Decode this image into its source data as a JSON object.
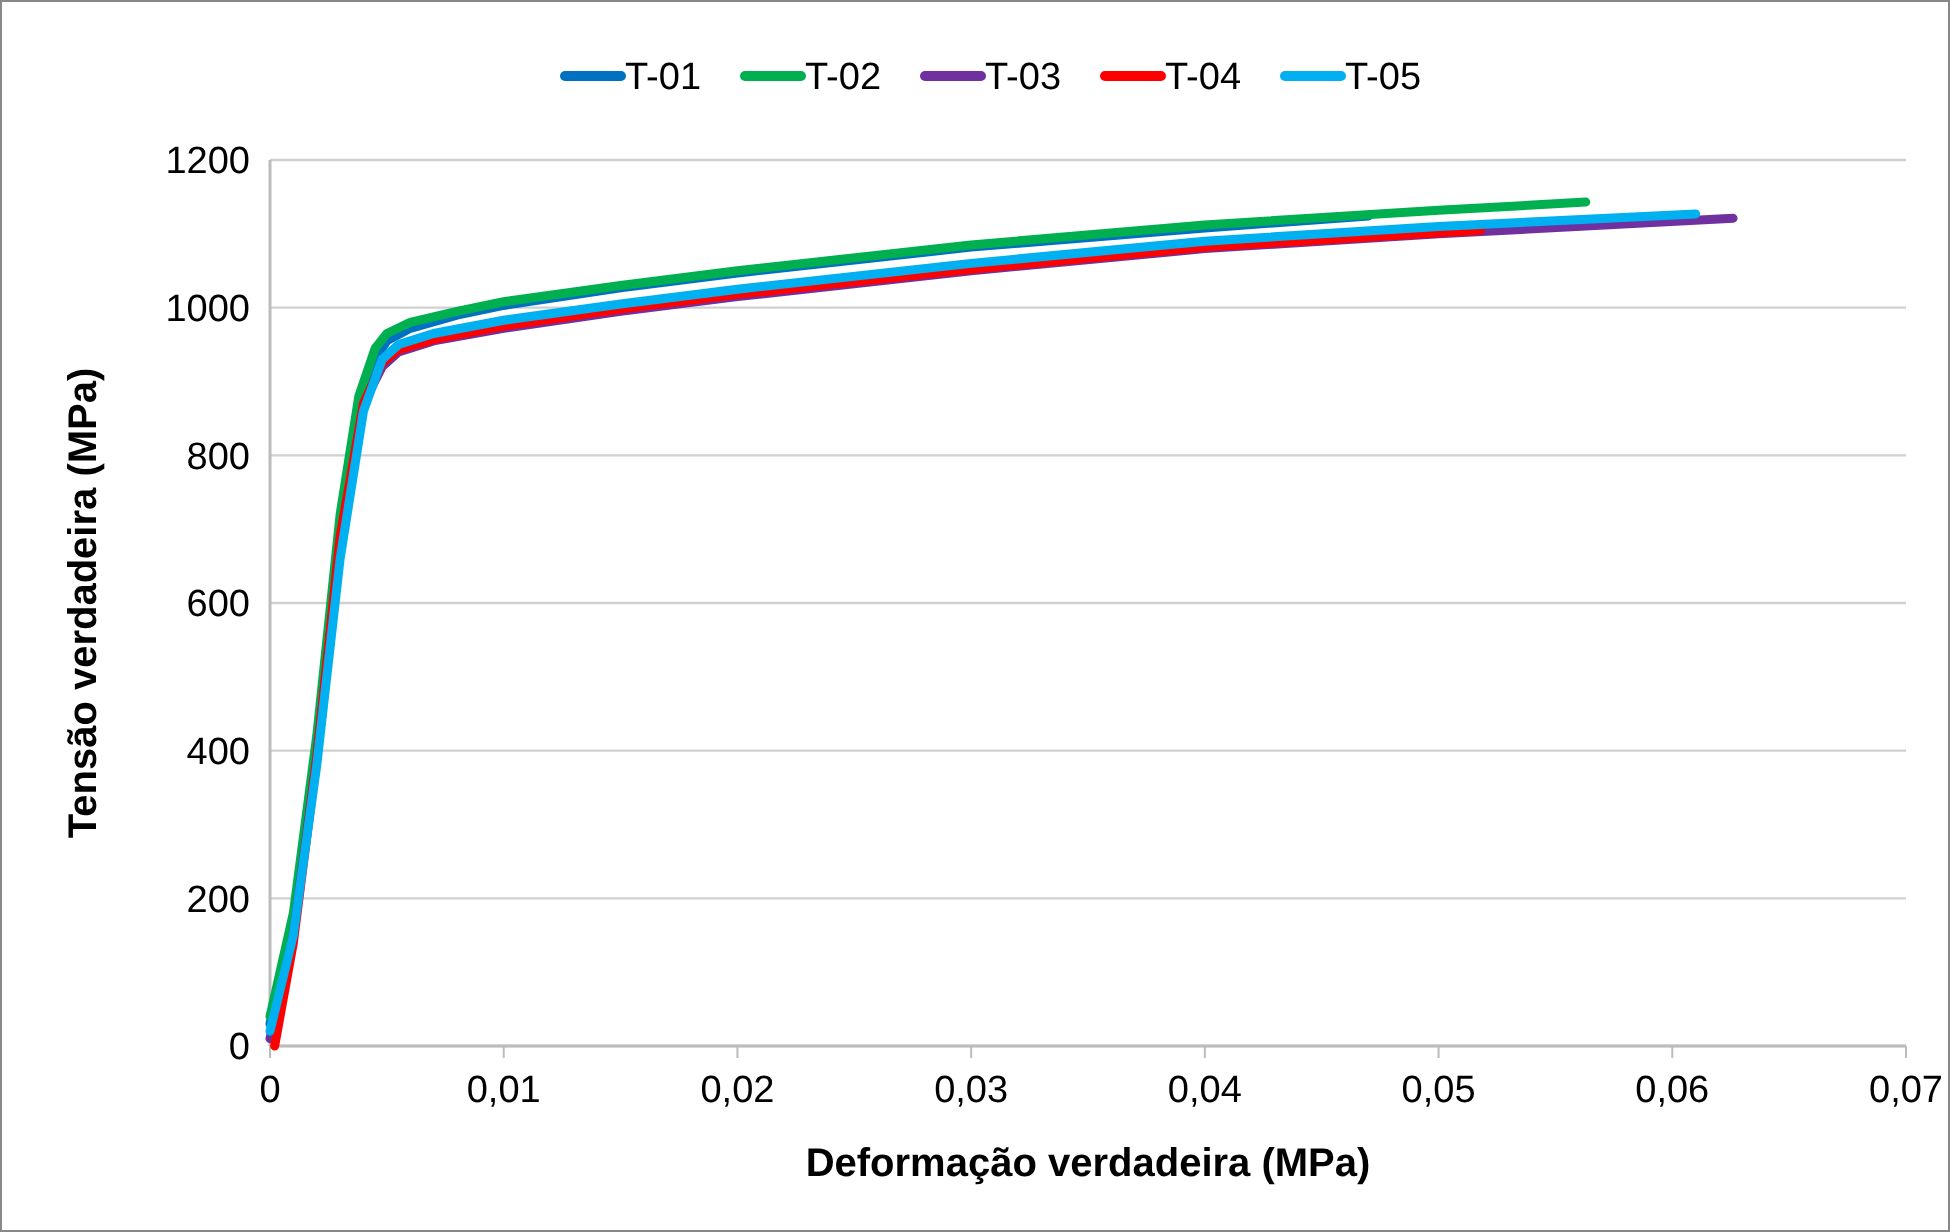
{
  "chart_data": {
    "type": "line",
    "xlabel": "Deformação verdadeira (MPa)",
    "ylabel": "Tensão verdadeira (MPa)",
    "legend": "top",
    "grid": "y",
    "marker": "none",
    "line_style": "solid",
    "xlim": [
      0,
      0.07
    ],
    "xticks": [
      0,
      {
        "value": 0.01,
        "label": "0,01"
      },
      {
        "value": 0.02,
        "label": "0,02"
      },
      {
        "value": 0.03,
        "label": "0,03"
      },
      {
        "value": 0.04,
        "label": "0,04"
      },
      {
        "value": 0.05,
        "label": "0,05"
      },
      {
        "value": 0.06,
        "label": "0,06"
      },
      {
        "value": 0.07,
        "label": "0,07"
      }
    ],
    "ylim": [
      0,
      1200
    ],
    "yticks": [
      0,
      200,
      400,
      600,
      800,
      1000,
      1200
    ],
    "series": [
      {
        "name": "T-01",
        "color": "#0070c0",
        "x": [
          0,
          0.001,
          0.002,
          0.003,
          0.0038,
          0.0045,
          0.005,
          0.006,
          0.008,
          0.01,
          0.015,
          0.02,
          0.03,
          0.04,
          0.047
        ],
        "values": [
          30,
          170,
          410,
          700,
          860,
          930,
          955,
          972,
          990,
          1003,
          1027,
          1047,
          1082,
          1108,
          1124
        ]
      },
      {
        "name": "T-02",
        "color": "#00b050",
        "x": [
          0,
          0.001,
          0.002,
          0.003,
          0.0038,
          0.0045,
          0.005,
          0.006,
          0.008,
          0.01,
          0.015,
          0.02,
          0.03,
          0.04,
          0.05,
          0.0563
        ],
        "values": [
          40,
          180,
          420,
          720,
          880,
          945,
          965,
          980,
          995,
          1008,
          1030,
          1050,
          1085,
          1112,
          1132,
          1143
        ]
      },
      {
        "name": "T-03",
        "color": "#7030a0",
        "x": [
          0,
          0.001,
          0.002,
          0.003,
          0.004,
          0.0048,
          0.0055,
          0.007,
          0.01,
          0.015,
          0.02,
          0.03,
          0.04,
          0.05,
          0.0626
        ],
        "values": [
          10,
          150,
          390,
          680,
          870,
          920,
          940,
          955,
          972,
          995,
          1015,
          1050,
          1080,
          1100,
          1121
        ]
      },
      {
        "name": "T-04",
        "color": "#ff0000",
        "x": [
          0.0002,
          0.001,
          0.002,
          0.003,
          0.004,
          0.0048,
          0.0055,
          0.007,
          0.01,
          0.015,
          0.02,
          0.03,
          0.04,
          0.0518
        ],
        "values": [
          0,
          140,
          390,
          690,
          870,
          925,
          943,
          957,
          975,
          998,
          1018,
          1052,
          1082,
          1105
        ]
      },
      {
        "name": "T-05",
        "color": "#00b0f0",
        "x": [
          0,
          0.001,
          0.002,
          0.003,
          0.004,
          0.0048,
          0.0055,
          0.007,
          0.01,
          0.015,
          0.02,
          0.03,
          0.04,
          0.05,
          0.061
        ],
        "values": [
          20,
          150,
          380,
          660,
          860,
          930,
          950,
          965,
          983,
          1005,
          1025,
          1060,
          1090,
          1110,
          1127
        ]
      }
    ]
  }
}
